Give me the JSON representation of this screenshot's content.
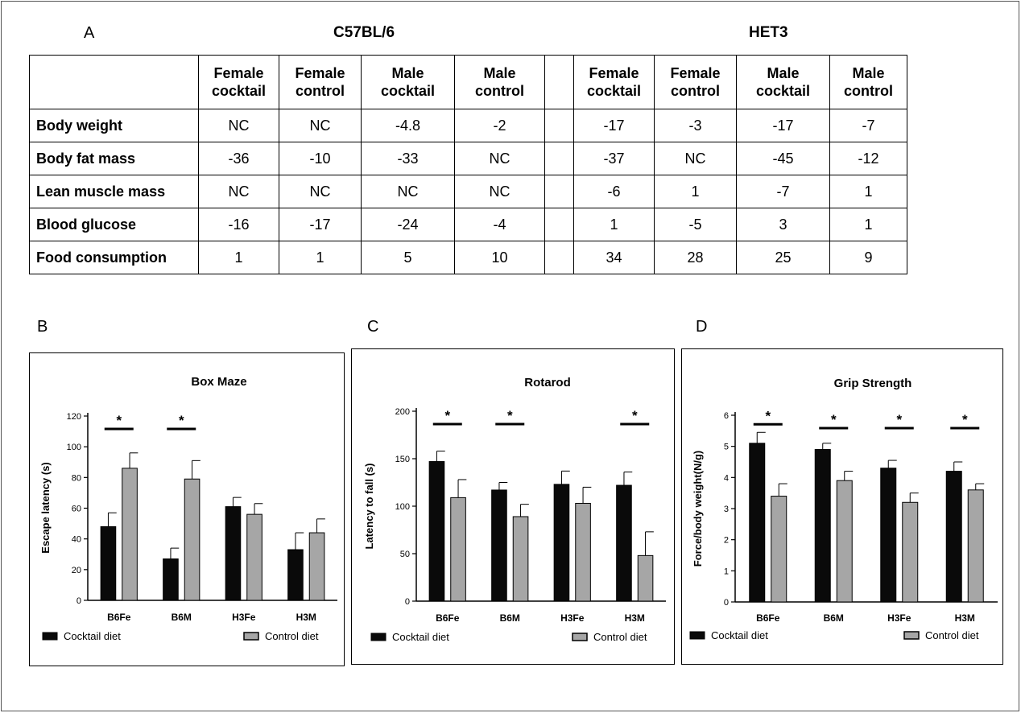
{
  "labels": {
    "a": "A",
    "b": "B",
    "c": "C",
    "d": "D"
  },
  "table": {
    "strain_groups": [
      "C57BL/6",
      "HET3"
    ],
    "column_headers": [
      [
        "Female",
        "cocktail"
      ],
      [
        "Female",
        "control"
      ],
      [
        "Male",
        "cocktail"
      ],
      [
        "Male",
        "control"
      ],
      [
        "Female",
        "cocktail"
      ],
      [
        "Female",
        "control"
      ],
      [
        "Male",
        "cocktail"
      ],
      [
        "Male",
        "control"
      ]
    ],
    "rows": [
      {
        "label": "Body weight",
        "b6": [
          "NC",
          "NC",
          "-4.8",
          "-2"
        ],
        "het3": [
          "-17",
          "-3",
          "-17",
          "-7"
        ]
      },
      {
        "label": "Body fat mass",
        "b6": [
          "-36",
          "-10",
          "-33",
          "NC"
        ],
        "het3": [
          "-37",
          "NC",
          "-45",
          "-12"
        ]
      },
      {
        "label": "Lean muscle mass",
        "b6": [
          "NC",
          "NC",
          "NC",
          "NC"
        ],
        "het3": [
          "-6",
          "1",
          "-7",
          "1"
        ]
      },
      {
        "label": "Blood glucose",
        "b6": [
          "-16",
          "-17",
          "-24",
          "-4"
        ],
        "het3": [
          "1",
          "-5",
          "3",
          "1"
        ]
      },
      {
        "label": "Food consumption",
        "b6": [
          "1",
          "1",
          "5",
          "10"
        ],
        "het3": [
          "34",
          "28",
          "25",
          "9"
        ]
      }
    ]
  },
  "colors": {
    "cocktail": "#0a0a0a",
    "control": "#a6a6a6"
  },
  "chart_data": [
    {
      "type": "bar",
      "title": "Box Maze",
      "ylabel": "Escape latency (s)",
      "ylim": [
        0,
        120
      ],
      "yticks": [
        0,
        20,
        40,
        60,
        80,
        100,
        120
      ],
      "categories": [
        "B6Fe",
        "B6M",
        "H3Fe",
        "H3M"
      ],
      "series": [
        {
          "name": "Cocktail diet",
          "values": [
            48,
            27,
            61,
            33
          ],
          "errors": [
            9,
            7,
            6,
            11
          ]
        },
        {
          "name": "Control diet",
          "values": [
            86,
            79,
            56,
            44
          ],
          "errors": [
            10,
            12,
            7,
            9
          ]
        }
      ],
      "significance": [
        true,
        true,
        false,
        false
      ],
      "sig_label": "*",
      "legend_position": "bottom"
    },
    {
      "type": "bar",
      "title": "Rotarod",
      "ylabel": "Latency to fall (s)",
      "ylim": [
        0,
        200
      ],
      "yticks": [
        0,
        50,
        100,
        150,
        200
      ],
      "categories": [
        "B6Fe",
        "B6M",
        "H3Fe",
        "H3M"
      ],
      "series": [
        {
          "name": "Cocktail diet",
          "values": [
            147,
            117,
            123,
            122
          ],
          "errors": [
            11,
            8,
            14,
            14
          ]
        },
        {
          "name": "Control diet",
          "values": [
            109,
            89,
            103,
            48
          ],
          "errors": [
            19,
            13,
            17,
            25
          ]
        }
      ],
      "significance": [
        true,
        true,
        false,
        true
      ],
      "sig_label": "*",
      "legend_position": "bottom"
    },
    {
      "type": "bar",
      "title": "Grip Strength",
      "ylabel": "Force/body weight(N/g)",
      "ylim": [
        0,
        6
      ],
      "yticks": [
        0,
        1,
        2,
        3,
        4,
        5,
        6
      ],
      "categories": [
        "B6Fe",
        "B6M",
        "H3Fe",
        "H3M"
      ],
      "series": [
        {
          "name": "Cocktail diet",
          "values": [
            5.1,
            4.9,
            4.3,
            4.2
          ],
          "errors": [
            0.35,
            0.2,
            0.25,
            0.3
          ]
        },
        {
          "name": "Control diet",
          "values": [
            3.4,
            3.9,
            3.2,
            3.6
          ],
          "errors": [
            0.4,
            0.3,
            0.3,
            0.2
          ]
        }
      ],
      "significance": [
        true,
        true,
        true,
        true
      ],
      "sig_label": "*",
      "legend_position": "bottom"
    }
  ]
}
